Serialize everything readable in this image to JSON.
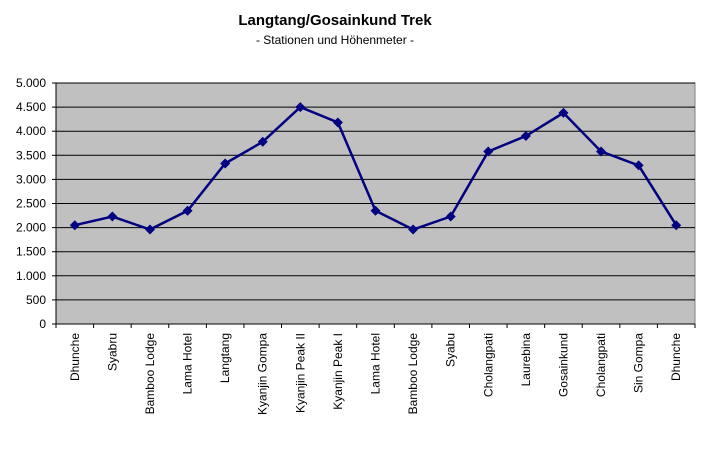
{
  "chart_data": {
    "type": "line",
    "title": "Langtang/Gosainkund Trek",
    "subtitle": "- Stationen und Höhenmeter -",
    "categories": [
      "Dhunche",
      "Syabru",
      "Bamboo Lodge",
      "Lama Hotel",
      "Langtang",
      "Kyanjin Gompa",
      "Kyanjin Peak II",
      "Kyanjin Peak I",
      "Lama Hotel",
      "Bamboo Lodge",
      "Syabu",
      "Cholangpati",
      "Laurebina",
      "Gosainkund",
      "Cholangpati",
      "Sin Gompa",
      "Dhunche"
    ],
    "values": [
      2050,
      2230,
      1960,
      2350,
      3330,
      3780,
      4500,
      4180,
      2350,
      1960,
      2230,
      3580,
      3900,
      4380,
      3580,
      3290,
      2050
    ],
    "color": "#000080",
    "ylim": [
      0,
      5000
    ],
    "yticks": [
      0,
      500,
      {
        "value": 1000,
        "label": "1.000"
      },
      {
        "value": 1500,
        "label": "1.500"
      },
      {
        "value": 2000,
        "label": "2.000"
      },
      {
        "value": 2500,
        "label": "2.500"
      },
      {
        "value": 3000,
        "label": "3.000"
      },
      {
        "value": 3500,
        "label": "3.500"
      },
      {
        "value": 4000,
        "label": "4.000"
      },
      {
        "value": 4500,
        "label": "4.500"
      },
      {
        "value": 5000,
        "label": "5.000"
      }
    ],
    "grid": true
  }
}
